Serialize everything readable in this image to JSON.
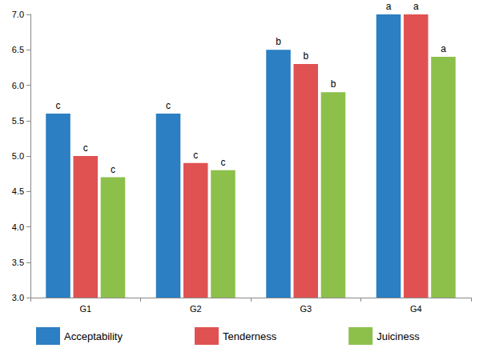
{
  "chart_data": {
    "type": "bar",
    "categories": [
      "G1",
      "G2",
      "G3",
      "G4"
    ],
    "series": [
      {
        "name": "Acceptability",
        "color": "#2b7fc2",
        "values": [
          5.6,
          5.6,
          6.5,
          7.0
        ],
        "annotations": [
          "c",
          "c",
          "b",
          "a"
        ]
      },
      {
        "name": "Tenderness",
        "color": "#e05252",
        "values": [
          5.0,
          4.9,
          6.3,
          7.0
        ],
        "annotations": [
          "c",
          "c",
          "b",
          "a"
        ]
      },
      {
        "name": "Juiciness",
        "color": "#8dc04b",
        "values": [
          4.7,
          4.8,
          5.9,
          6.4
        ],
        "annotations": [
          "c",
          "c",
          "b",
          "a"
        ]
      }
    ],
    "ylim": [
      3,
      7
    ],
    "yticks": [
      {
        "value": 3,
        "label": "3.0"
      },
      {
        "value": 3.5,
        "label": "3.5"
      },
      {
        "value": 4,
        "label": "4.0"
      },
      {
        "value": 4.5,
        "label": "4.5"
      },
      {
        "value": 5,
        "label": "5.0"
      },
      {
        "value": 5.5,
        "label": "5.5"
      },
      {
        "value": 6,
        "label": "6.0"
      },
      {
        "value": 6.5,
        "label": "6.5"
      },
      {
        "value": 7,
        "label": "7.0"
      }
    ],
    "grid": false,
    "legend": "bottom"
  }
}
